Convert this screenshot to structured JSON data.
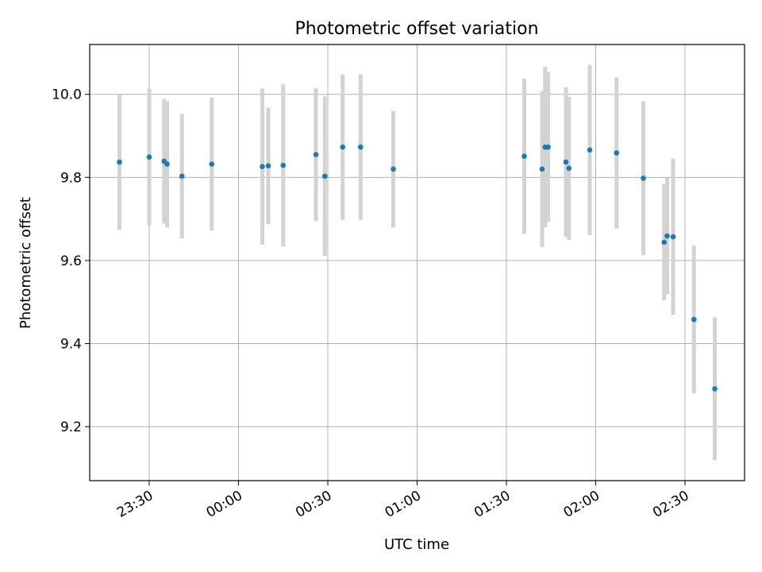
{
  "chart_data": {
    "type": "scatter",
    "title": "Photometric offset variation",
    "xlabel": "UTC time",
    "ylabel": "Photometric offset",
    "x_unit": "UTC time (HH:MM)",
    "xlim": [
      "23:10",
      "02:50"
    ],
    "ylim": [
      9.07,
      10.12
    ],
    "x_ticks": [
      "23:30",
      "00:00",
      "00:30",
      "01:00",
      "01:30",
      "02:00",
      "02:30"
    ],
    "y_ticks": [
      "9.2",
      "9.4",
      "9.6",
      "9.8",
      "10.0"
    ],
    "grid": true,
    "series": [
      {
        "marker_color": "#1f77b4",
        "errorbar_color": "#d3d3d3",
        "points": [
          {
            "t": "23:20",
            "y": 9.837,
            "err": 0.163
          },
          {
            "t": "23:30",
            "y": 9.849,
            "err": 0.165
          },
          {
            "t": "23:35",
            "y": 9.839,
            "err": 0.15
          },
          {
            "t": "23:36",
            "y": 9.832,
            "err": 0.152
          },
          {
            "t": "23:41",
            "y": 9.803,
            "err": 0.15
          },
          {
            "t": "23:51",
            "y": 9.832,
            "err": 0.16
          },
          {
            "t": "00:08",
            "y": 9.826,
            "err": 0.188
          },
          {
            "t": "00:10",
            "y": 9.828,
            "err": 0.14
          },
          {
            "t": "00:15",
            "y": 9.829,
            "err": 0.195
          },
          {
            "t": "00:26",
            "y": 9.855,
            "err": 0.16
          },
          {
            "t": "00:29",
            "y": 9.803,
            "err": 0.192
          },
          {
            "t": "00:35",
            "y": 9.873,
            "err": 0.175
          },
          {
            "t": "00:41",
            "y": 9.873,
            "err": 0.175
          },
          {
            "t": "00:52",
            "y": 9.82,
            "err": 0.14
          },
          {
            "t": "01:36",
            "y": 9.851,
            "err": 0.187
          },
          {
            "t": "01:42",
            "y": 9.82,
            "err": 0.188
          },
          {
            "t": "01:43",
            "y": 9.873,
            "err": 0.193
          },
          {
            "t": "01:44",
            "y": 9.873,
            "err": 0.18
          },
          {
            "t": "01:50",
            "y": 9.837,
            "err": 0.18
          },
          {
            "t": "01:51",
            "y": 9.822,
            "err": 0.172
          },
          {
            "t": "01:58",
            "y": 9.866,
            "err": 0.205
          },
          {
            "t": "02:07",
            "y": 9.859,
            "err": 0.182
          },
          {
            "t": "02:16",
            "y": 9.798,
            "err": 0.185
          },
          {
            "t": "02:23",
            "y": 9.644,
            "err": 0.14
          },
          {
            "t": "02:24",
            "y": 9.659,
            "err": 0.14
          },
          {
            "t": "02:26",
            "y": 9.657,
            "err": 0.188
          },
          {
            "t": "02:33",
            "y": 9.458,
            "err": 0.178
          },
          {
            "t": "02:40",
            "y": 9.291,
            "err": 0.172
          }
        ]
      }
    ]
  }
}
